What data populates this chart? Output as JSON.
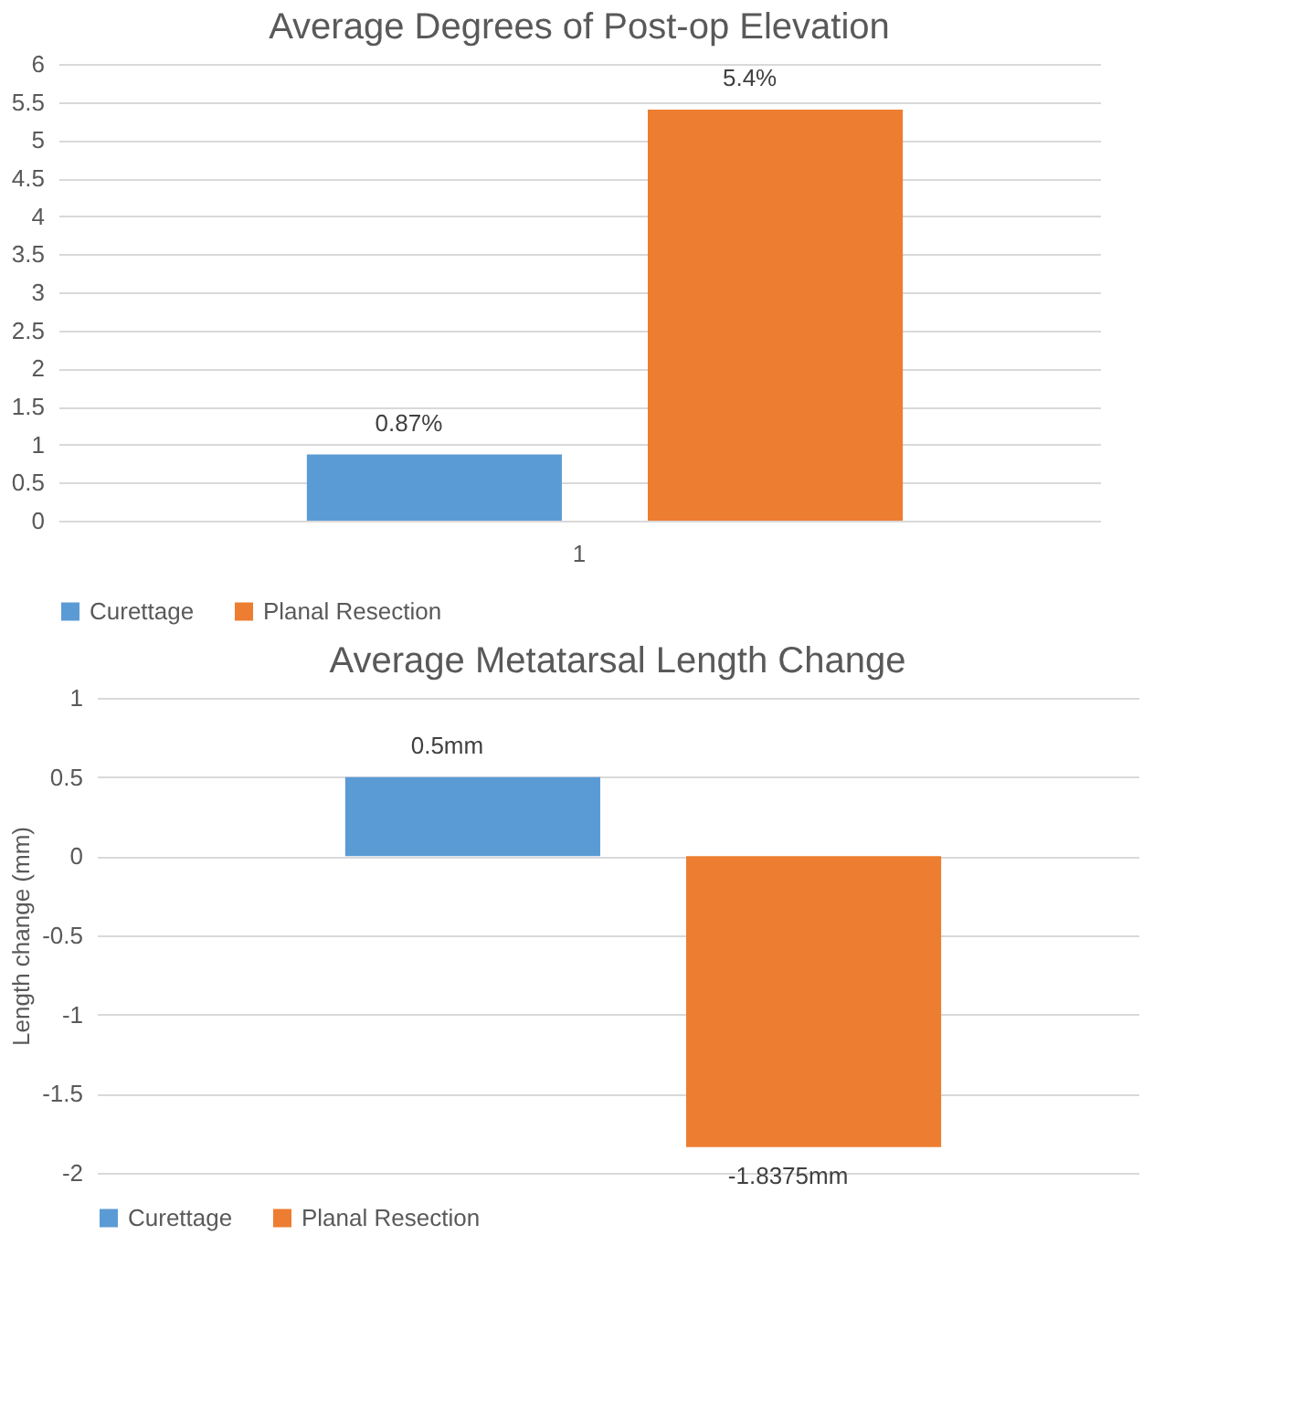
{
  "chart_data": [
    {
      "type": "bar",
      "title": "Average Degrees of Post-op Elevation",
      "categories": [
        "1"
      ],
      "series": [
        {
          "name": "Curettage",
          "color": "#5b9bd5",
          "values": [
            0.87
          ],
          "value_labels": [
            "0.87%"
          ]
        },
        {
          "name": "Planal Resection",
          "color": "#ed7d31",
          "values": [
            5.4
          ],
          "value_labels": [
            "5.4%"
          ]
        }
      ],
      "ylim": [
        0,
        6
      ],
      "yticks": [
        0,
        0.5,
        1,
        1.5,
        2,
        2.5,
        3,
        3.5,
        4,
        4.5,
        5,
        5.5,
        6
      ],
      "grid": "y",
      "legend": "bottom"
    },
    {
      "type": "bar",
      "title": "Average Metatarsal Length Change",
      "ylabel": "Length change (mm)",
      "categories": [
        null
      ],
      "series": [
        {
          "name": "Curettage",
          "color": "#5b9bd5",
          "values": [
            0.5
          ],
          "value_labels": [
            "0.5mm"
          ]
        },
        {
          "name": "Planal Resection",
          "color": "#ed7d31",
          "values": [
            -1.8375
          ],
          "value_labels": [
            "-1.8375mm"
          ]
        }
      ],
      "ylim": [
        -2,
        1
      ],
      "yticks": [
        -2,
        -1.5,
        -1,
        -0.5,
        0,
        0.5,
        1
      ],
      "grid": "y",
      "legend": "bottom",
      "tick_labels": "y"
    }
  ]
}
